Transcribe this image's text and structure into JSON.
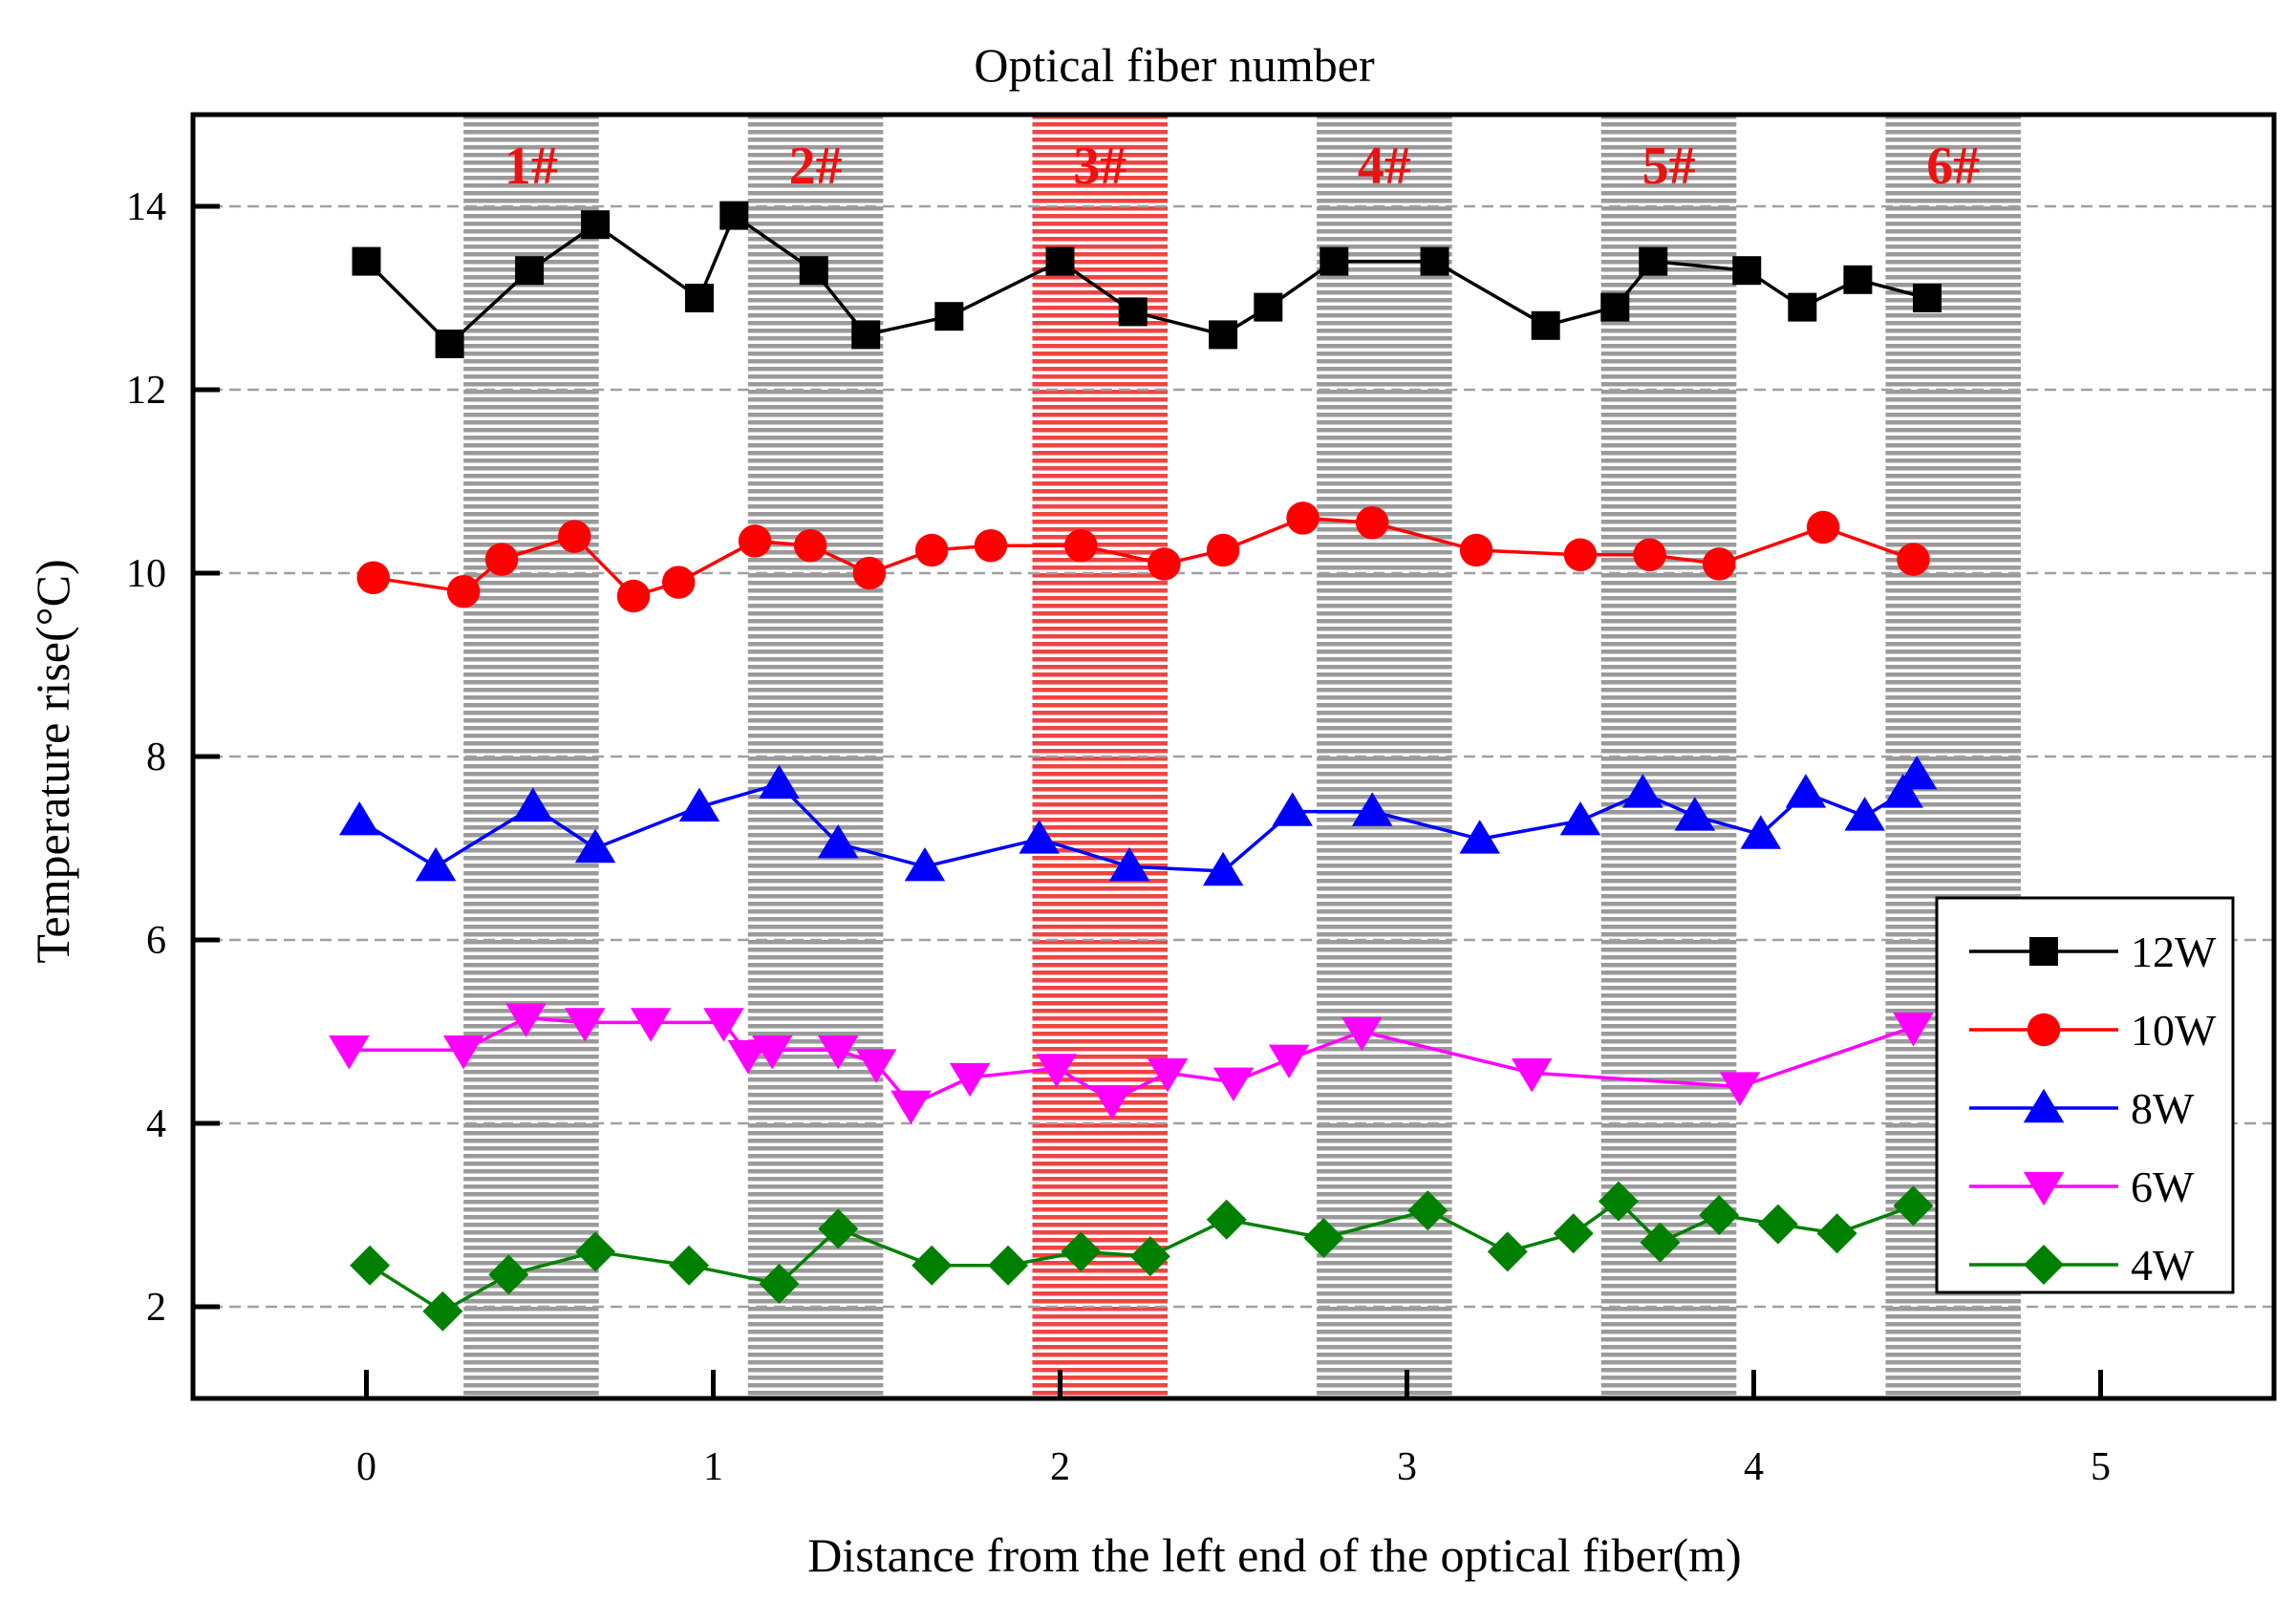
{
  "chart_data": {
    "type": "line",
    "title": "Optical fiber number",
    "xlabel": "Distance from the left end of the optical fiber(m)",
    "ylabel": "Temperature rise(°C)",
    "xlim": [
      -0.5,
      5.5
    ],
    "ylim": [
      1,
      15
    ],
    "xticks": [
      0,
      1,
      2,
      3,
      4,
      5
    ],
    "yticks": [
      2,
      4,
      6,
      8,
      10,
      12,
      14
    ],
    "grid": "horizontal dashed",
    "legend_position": "lower-right",
    "zones": [
      {
        "label": "1#",
        "x_start": 0.28,
        "x_end": 0.67,
        "color": "#9a9a9a"
      },
      {
        "label": "2#",
        "x_start": 1.1,
        "x_end": 1.49,
        "color": "#9a9a9a"
      },
      {
        "label": "3#",
        "x_start": 1.92,
        "x_end": 2.31,
        "color": "#ee4444"
      },
      {
        "label": "4#",
        "x_start": 2.74,
        "x_end": 3.13,
        "color": "#9a9a9a"
      },
      {
        "label": "5#",
        "x_start": 3.56,
        "x_end": 3.95,
        "color": "#9a9a9a"
      },
      {
        "label": "6#",
        "x_start": 4.38,
        "x_end": 4.77,
        "color": "#9a9a9a"
      }
    ],
    "series": [
      {
        "name": "12W",
        "color": "#000000",
        "marker": "square",
        "x": [
          0.0,
          0.24,
          0.47,
          0.66,
          0.96,
          1.06,
          1.29,
          1.44,
          1.68,
          2.0,
          2.21,
          2.47,
          2.6,
          2.79,
          3.08,
          3.4,
          3.6,
          3.71,
          3.98,
          4.14,
          4.3,
          4.5
        ],
        "y": [
          13.4,
          12.5,
          13.3,
          13.8,
          13.0,
          13.9,
          13.3,
          12.6,
          12.8,
          13.4,
          12.85,
          12.6,
          12.9,
          13.4,
          13.4,
          12.7,
          12.9,
          13.4,
          13.3,
          12.9,
          13.2,
          13.0
        ]
      },
      {
        "name": "10W",
        "color": "#ff0000",
        "marker": "circle",
        "x": [
          0.02,
          0.28,
          0.39,
          0.6,
          0.77,
          0.9,
          1.12,
          1.28,
          1.45,
          1.63,
          1.8,
          2.06,
          2.3,
          2.47,
          2.7,
          2.9,
          3.2,
          3.5,
          3.7,
          3.9,
          4.2,
          4.46
        ],
        "y": [
          9.95,
          9.8,
          10.15,
          10.4,
          9.75,
          9.9,
          10.35,
          10.3,
          10.0,
          10.25,
          10.3,
          10.3,
          10.1,
          10.25,
          10.6,
          10.55,
          10.25,
          10.2,
          10.2,
          10.1,
          10.5,
          10.15
        ]
      },
      {
        "name": "8W",
        "color": "#0000ff",
        "marker": "triangle-up",
        "x": [
          -0.02,
          0.2,
          0.48,
          0.66,
          0.96,
          1.19,
          1.36,
          1.61,
          1.94,
          2.2,
          2.47,
          2.67,
          2.9,
          3.21,
          3.5,
          3.68,
          3.83,
          4.02,
          4.15,
          4.32,
          4.43,
          4.47
        ],
        "y": [
          7.3,
          6.8,
          7.45,
          7.0,
          7.45,
          7.7,
          7.05,
          6.8,
          7.1,
          6.8,
          6.75,
          7.4,
          7.4,
          7.1,
          7.3,
          7.6,
          7.35,
          7.15,
          7.6,
          7.35,
          7.6,
          7.8
        ]
      },
      {
        "name": "6W",
        "color": "#ff00ff",
        "marker": "triangle-down",
        "x": [
          -0.05,
          0.28,
          0.46,
          0.63,
          0.82,
          1.03,
          1.1,
          1.17,
          1.36,
          1.47,
          1.57,
          1.74,
          1.99,
          2.15,
          2.31,
          2.5,
          2.66,
          2.87,
          3.36,
          3.96,
          4.46
        ],
        "y": [
          4.8,
          4.8,
          5.15,
          5.1,
          5.1,
          5.1,
          4.75,
          4.8,
          4.8,
          4.65,
          4.2,
          4.5,
          4.6,
          4.25,
          4.55,
          4.45,
          4.7,
          5.0,
          4.55,
          4.4,
          5.05
        ]
      },
      {
        "name": "4W",
        "color": "#008000",
        "marker": "diamond",
        "x": [
          0.01,
          0.22,
          0.41,
          0.66,
          0.93,
          1.19,
          1.36,
          1.63,
          1.85,
          2.06,
          2.26,
          2.48,
          2.76,
          3.06,
          3.29,
          3.48,
          3.61,
          3.73,
          3.9,
          4.07,
          4.24,
          4.46
        ],
        "y": [
          2.45,
          1.95,
          2.35,
          2.6,
          2.45,
          2.25,
          2.85,
          2.45,
          2.45,
          2.6,
          2.55,
          2.95,
          2.75,
          3.05,
          2.6,
          2.8,
          3.15,
          2.7,
          3.0,
          2.9,
          2.8,
          3.1
        ]
      }
    ]
  }
}
